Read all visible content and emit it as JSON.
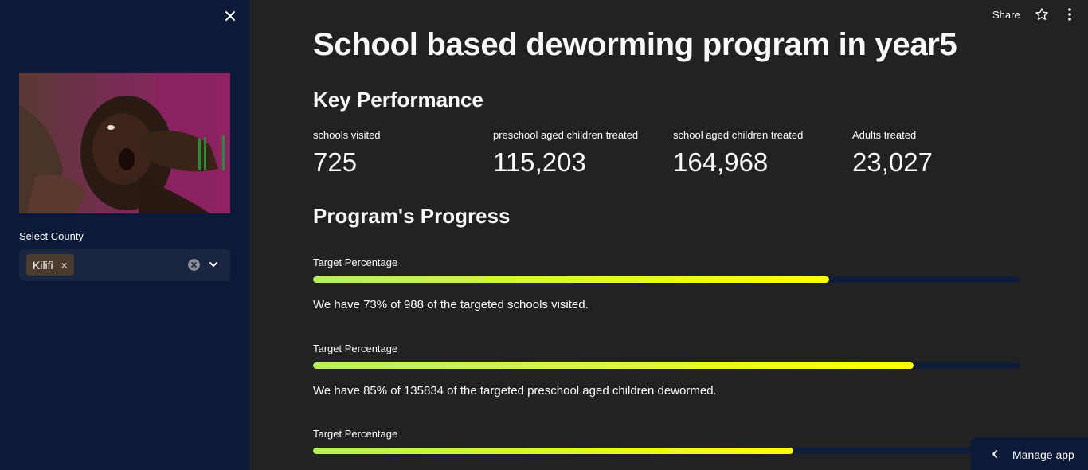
{
  "sidebar": {
    "select_label": "Select County",
    "selected_value": "Kilifi",
    "chip_remove": "×"
  },
  "toolbar": {
    "share_label": "Share"
  },
  "main": {
    "title": "School based deworming program in year5",
    "kpi_heading": "Key Performance",
    "metrics": [
      {
        "label": "schools visited",
        "value": "725"
      },
      {
        "label": "preschool aged children treated",
        "value": "115,203"
      },
      {
        "label": "school aged children treated",
        "value": "164,968"
      },
      {
        "label": "Adults treated",
        "value": "23,027"
      }
    ],
    "progress_heading": "Program's Progress",
    "progress": [
      {
        "label": "Target Percentage",
        "percent": 73,
        "text": "We have 73% of 988 of the targeted schools visited."
      },
      {
        "label": "Target Percentage",
        "percent": 85,
        "text": "We have 85% of 135834 of the targeted preschool aged children dewormed."
      },
      {
        "label": "Target Percentage",
        "percent": 68,
        "text": ""
      }
    ]
  },
  "footer": {
    "manage_label": "Manage app"
  },
  "colors": {
    "sidebar_bg": "#0c1a3a",
    "main_bg": "#222222",
    "progress_start": "#b6f05a",
    "progress_end": "#ffff00",
    "track": "#0f1c3a"
  }
}
